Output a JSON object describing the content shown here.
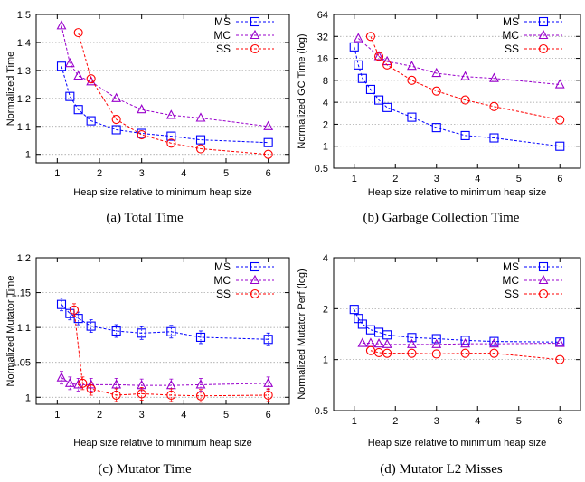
{
  "chart_data": [
    {
      "type": "line",
      "caption": "(a)  Total Time",
      "xlabel": "Heap size relative to minimum heap size",
      "ylabel": "Normalized Time",
      "xlim": [
        0.5,
        6.5
      ],
      "ylim": [
        0.97,
        1.5
      ],
      "yscale": "linear",
      "xticks": [
        "1",
        "2",
        "3",
        "4",
        "5",
        "6"
      ],
      "yticks": [
        "1",
        "1.1",
        "1.2",
        "1.3",
        "1.4",
        "1.5"
      ],
      "grid": true,
      "legend_position": "top-right",
      "series": [
        {
          "name": "MS",
          "color": "#0000ff",
          "marker": "square",
          "x": [
            1.1,
            1.3,
            1.5,
            1.8,
            2.4,
            3.0,
            3.7,
            4.4,
            6.0
          ],
          "y": [
            1.315,
            1.207,
            1.16,
            1.12,
            1.088,
            1.075,
            1.065,
            1.052,
            1.042
          ]
        },
        {
          "name": "MC",
          "color": "#9900cc",
          "marker": "triangle",
          "x": [
            1.1,
            1.3,
            1.5,
            1.8,
            2.4,
            3.0,
            3.7,
            4.4,
            6.0
          ],
          "y": [
            1.46,
            1.325,
            1.28,
            1.26,
            1.2,
            1.16,
            1.14,
            1.13,
            1.1
          ]
        },
        {
          "name": "SS",
          "color": "#ff0000",
          "marker": "circle",
          "x": [
            1.5,
            1.8,
            2.4,
            3.0,
            3.7,
            4.4,
            6.0
          ],
          "y": [
            1.435,
            1.27,
            1.125,
            1.07,
            1.04,
            1.02,
            1.0
          ]
        }
      ]
    },
    {
      "type": "line",
      "caption": "(b)  Garbage Collection Time",
      "xlabel": "Heap size relative to minimum heap size",
      "ylabel": "Normalized GC Time (log)",
      "xlim": [
        0.5,
        6.5
      ],
      "ylim": [
        0.5,
        64
      ],
      "yscale": "log",
      "xticks": [
        "1",
        "2",
        "3",
        "4",
        "5",
        "6"
      ],
      "yticks": [
        "0.5",
        "1",
        "2",
        "4",
        "8",
        "16",
        "32",
        "64"
      ],
      "grid": true,
      "legend_position": "top-right",
      "series": [
        {
          "name": "MS",
          "color": "#0000ff",
          "marker": "square",
          "x": [
            1.0,
            1.1,
            1.2,
            1.4,
            1.6,
            1.8,
            2.4,
            3.0,
            3.7,
            4.4,
            6.0
          ],
          "y": [
            23,
            13,
            8.5,
            6.0,
            4.3,
            3.4,
            2.5,
            1.8,
            1.4,
            1.3,
            1.0
          ]
        },
        {
          "name": "MC",
          "color": "#9900cc",
          "marker": "triangle",
          "x": [
            1.1,
            1.6,
            1.8,
            2.4,
            3.0,
            3.7,
            4.4,
            6.0
          ],
          "y": [
            30,
            17,
            14.5,
            12.5,
            10,
            9,
            8.5,
            7
          ]
        },
        {
          "name": "SS",
          "color": "#ff0000",
          "marker": "circle",
          "x": [
            1.4,
            1.6,
            1.8,
            2.4,
            3.0,
            3.7,
            4.4,
            6.0
          ],
          "y": [
            32,
            17,
            13,
            8,
            5.7,
            4.3,
            3.5,
            2.3
          ]
        }
      ]
    },
    {
      "type": "line",
      "caption": "(c)  Mutator Time",
      "xlabel": "Heap size relative to minimum heap size",
      "ylabel": "Normalized Mutator Time",
      "xlim": [
        0.5,
        6.5
      ],
      "ylim": [
        0.99,
        1.2
      ],
      "yscale": "linear",
      "xticks": [
        "1",
        "2",
        "3",
        "4",
        "5",
        "6"
      ],
      "yticks": [
        "1",
        "1.05",
        "1.1",
        "1.15",
        "1.2"
      ],
      "grid": true,
      "error_bars": true,
      "legend_position": "top-right",
      "series": [
        {
          "name": "MS",
          "color": "#0000ff",
          "marker": "square",
          "x": [
            1.1,
            1.3,
            1.5,
            1.8,
            2.4,
            3.0,
            3.7,
            4.4,
            6.0
          ],
          "y": [
            1.133,
            1.12,
            1.113,
            1.102,
            1.095,
            1.092,
            1.094,
            1.086,
            1.083
          ]
        },
        {
          "name": "MC",
          "color": "#9900cc",
          "marker": "triangle",
          "x": [
            1.1,
            1.3,
            1.5,
            1.8,
            2.4,
            3.0,
            3.7,
            4.4,
            6.0
          ],
          "y": [
            1.028,
            1.02,
            1.018,
            1.018,
            1.018,
            1.017,
            1.017,
            1.018,
            1.02
          ]
        },
        {
          "name": "SS",
          "color": "#ff0000",
          "marker": "circle",
          "x": [
            1.4,
            1.6,
            1.8,
            2.4,
            3.0,
            3.7,
            4.4,
            6.0
          ],
          "y": [
            1.125,
            1.02,
            1.012,
            1.003,
            1.005,
            1.003,
            1.002,
            1.003
          ]
        }
      ]
    },
    {
      "type": "line",
      "caption": "(d)  Mutator L2 Misses",
      "xlabel": "Heap size relative to minimum heap size",
      "ylabel": "Normalized Mutator Perf (log)",
      "xlim": [
        0.5,
        6.5
      ],
      "ylim": [
        0.5,
        4
      ],
      "yscale": "log",
      "xticks": [
        "1",
        "2",
        "3",
        "4",
        "5",
        "6"
      ],
      "yticks": [
        "0.5",
        "1",
        "2",
        "4"
      ],
      "grid": true,
      "legend_position": "top-right",
      "series": [
        {
          "name": "MS",
          "color": "#0000ff",
          "marker": "square",
          "x": [
            1.0,
            1.1,
            1.2,
            1.4,
            1.6,
            1.8,
            2.4,
            3.0,
            3.7,
            4.4,
            6.0
          ],
          "y": [
            1.98,
            1.75,
            1.62,
            1.5,
            1.45,
            1.4,
            1.35,
            1.33,
            1.3,
            1.28,
            1.27
          ]
        },
        {
          "name": "MC",
          "color": "#9900cc",
          "marker": "triangle",
          "x": [
            1.2,
            1.4,
            1.6,
            1.8,
            2.4,
            3.0,
            3.7,
            4.4,
            6.0
          ],
          "y": [
            1.25,
            1.25,
            1.24,
            1.23,
            1.23,
            1.23,
            1.24,
            1.24,
            1.25
          ]
        },
        {
          "name": "SS",
          "color": "#ff0000",
          "marker": "circle",
          "x": [
            1.4,
            1.6,
            1.8,
            2.4,
            3.0,
            3.7,
            4.4,
            6.0
          ],
          "y": [
            1.13,
            1.1,
            1.09,
            1.09,
            1.08,
            1.09,
            1.09,
            1.0
          ]
        }
      ]
    }
  ]
}
